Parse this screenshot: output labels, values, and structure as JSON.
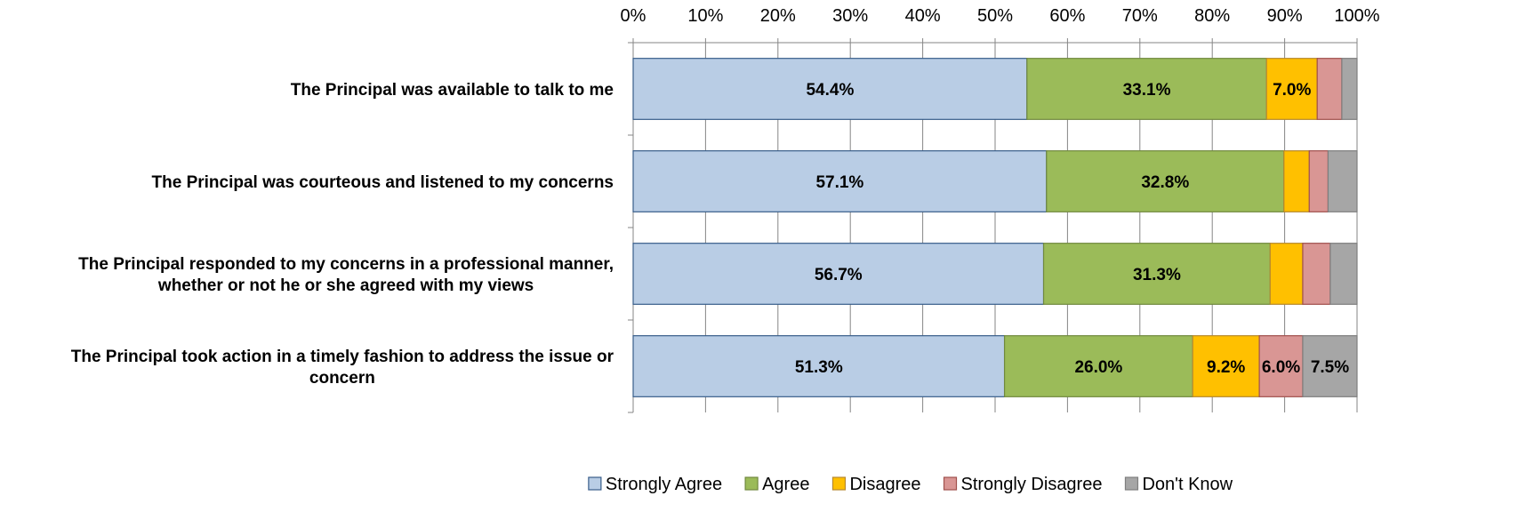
{
  "chart_data": {
    "type": "bar",
    "orientation": "horizontal",
    "stacked": true,
    "title": "",
    "xlabel": "",
    "ylabel": "",
    "xlim": [
      0,
      100
    ],
    "x_ticks": [
      "0%",
      "10%",
      "20%",
      "30%",
      "40%",
      "50%",
      "60%",
      "70%",
      "80%",
      "90%",
      "100%"
    ],
    "x_axis_position": "top",
    "grid": true,
    "legend_position": "bottom",
    "categories": [
      [
        "The Principal was available to talk to me"
      ],
      [
        "The Principal was courteous and listened to my concerns"
      ],
      [
        "The Principal responded to my concerns in a professional manner,",
        "whether or not he or she agreed with my views"
      ],
      [
        "The Principal took action in a timely fashion to address the issue or",
        "concern"
      ]
    ],
    "series": [
      {
        "name": "Strongly Agree",
        "color": "#b9cde5",
        "border": "#385d8a",
        "values": [
          54.4,
          57.1,
          56.7,
          51.3
        ],
        "labels": [
          "54.4%",
          "57.1%",
          "56.7%",
          "51.3%"
        ]
      },
      {
        "name": "Agree",
        "color": "#9bbb59",
        "border": "#71893f",
        "values": [
          33.1,
          32.8,
          31.3,
          26.0
        ],
        "labels": [
          "33.1%",
          "32.8%",
          "31.3%",
          "26.0%"
        ]
      },
      {
        "name": "Disagree",
        "color": "#ffc000",
        "border": "#b7892f",
        "values": [
          7.0,
          3.5,
          4.5,
          9.2
        ],
        "labels": [
          "7.0%",
          "",
          "",
          "9.2%"
        ]
      },
      {
        "name": "Strongly Disagree",
        "color": "#d99694",
        "border": "#a0504d",
        "values": [
          3.4,
          2.6,
          3.8,
          6.0
        ],
        "labels": [
          "",
          "",
          "",
          "6.0%"
        ]
      },
      {
        "name": "Don't Know",
        "color": "#a6a6a6",
        "border": "#7f7f7f",
        "values": [
          2.1,
          4.0,
          3.7,
          7.5
        ],
        "labels": [
          "",
          "",
          "",
          "7.5%"
        ]
      }
    ]
  }
}
